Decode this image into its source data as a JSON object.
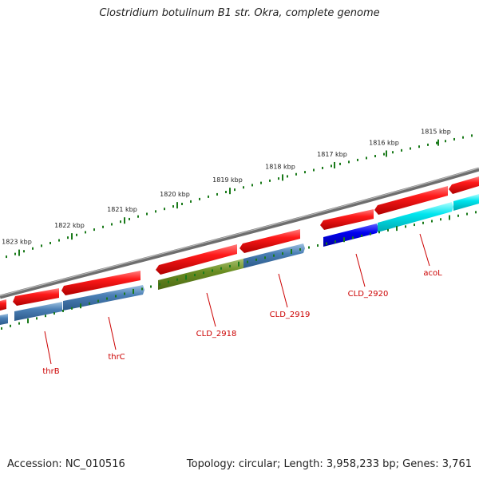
{
  "title": "Clostridium botulinum B1 str. Okra, complete genome",
  "footer": {
    "accession": "Accession: NC_010516",
    "summary": "Topology: circular; Length: 3,958,233 bp; Genes: 3,761"
  },
  "ruler": {
    "unit": "kbp",
    "labels": [
      "1823 kbp",
      "1822 kbp",
      "1821 kbp",
      "1820 kbp",
      "1819 kbp",
      "1818 kbp",
      "1817 kbp",
      "1816 kbp",
      "1815 kbp"
    ]
  },
  "colors": {
    "backbone": "#7f7f7f",
    "forward_gene": "#ff1010",
    "reverse_gene": "#4a7fb5",
    "highlight_green": "#6b8e23",
    "highlight_blue": "#0000ee",
    "highlight_cyan": "#00e5ee",
    "tick": "#1a7a1a",
    "label_red": "#cc0000"
  },
  "genes": {
    "labeled": [
      {
        "name": "thrB",
        "strand": "reverse",
        "color": "reverse_gene"
      },
      {
        "name": "thrC",
        "strand": "reverse",
        "color": "reverse_gene"
      },
      {
        "name": "CLD_2918",
        "strand": "reverse",
        "color": "highlight_green"
      },
      {
        "name": "CLD_2919",
        "strand": "reverse",
        "color": "reverse_gene"
      },
      {
        "name": "CLD_2920",
        "strand": "reverse",
        "color": "highlight_blue"
      },
      {
        "name": "acoL",
        "strand": "reverse",
        "color": "highlight_cyan"
      }
    ],
    "forward_count": 8
  }
}
